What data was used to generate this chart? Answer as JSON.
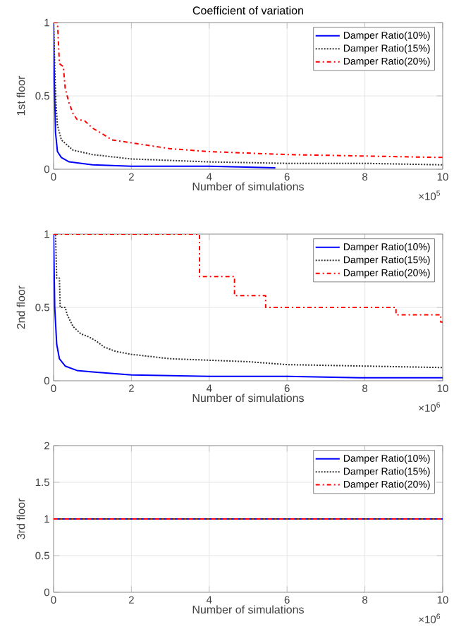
{
  "chart_data": [
    {
      "type": "line",
      "title": "Coefficient of variation",
      "xlabel": "Number of simulations",
      "ylabel": "1st floor",
      "annotations": [
        "×10$^{5}$"
      ],
      "xlim": [
        0,
        10
      ],
      "xticks": [
        0,
        2,
        4,
        6,
        8,
        10
      ],
      "ylim": [
        0,
        1
      ],
      "yticks": [
        0,
        0.5,
        1
      ],
      "grid": true,
      "legend": "top right",
      "series": [
        {
          "name": "Damper Ratio(10%)",
          "color": "#0000ff",
          "line_style": "solid",
          "x": [
            0,
            0.02,
            0.05,
            0.1,
            0.2,
            0.4,
            1,
            2,
            4,
            5.7
          ],
          "values": [
            1,
            0.6,
            0.25,
            0.12,
            0.08,
            0.05,
            0.03,
            0.02,
            0.02,
            0.01
          ]
        },
        {
          "name": "Damper Ratio(15%)",
          "color": "#333333",
          "line_style": "dotted",
          "x": [
            0,
            0.03,
            0.06,
            0.1,
            0.2,
            0.5,
            1,
            2,
            4,
            6,
            8,
            10
          ],
          "values": [
            1,
            0.7,
            0.45,
            0.3,
            0.2,
            0.13,
            0.1,
            0.07,
            0.05,
            0.04,
            0.04,
            0.03
          ]
        },
        {
          "name": "Damper Ratio(20%)",
          "color": "#ff0000",
          "line_style": "dashed",
          "x": [
            0,
            0.1,
            0.15,
            0.25,
            0.3,
            0.4,
            0.5,
            0.6,
            0.8,
            1,
            1.2,
            1.5,
            2,
            2.5,
            3,
            4,
            5,
            6,
            8,
            10
          ],
          "values": [
            1,
            1,
            0.72,
            0.7,
            0.55,
            0.45,
            0.38,
            0.34,
            0.33,
            0.28,
            0.25,
            0.2,
            0.18,
            0.16,
            0.14,
            0.12,
            0.11,
            0.1,
            0.09,
            0.08
          ]
        }
      ]
    },
    {
      "type": "line",
      "xlabel": "Number of simulations",
      "ylabel": "2nd floor",
      "annotations": [
        "×10$^{6}$"
      ],
      "xlim": [
        0,
        10
      ],
      "xticks": [
        0,
        2,
        4,
        6,
        8,
        10
      ],
      "ylim": [
        0,
        1
      ],
      "yticks": [
        0,
        0.5,
        1
      ],
      "grid": true,
      "legend": "top right",
      "series": [
        {
          "name": "Damper Ratio(10%)",
          "color": "#0000ff",
          "line_style": "solid",
          "x": [
            0,
            0.03,
            0.08,
            0.15,
            0.3,
            0.6,
            1,
            2,
            4,
            6,
            8,
            10
          ],
          "values": [
            1,
            0.5,
            0.25,
            0.15,
            0.1,
            0.07,
            0.06,
            0.04,
            0.03,
            0.03,
            0.02,
            0.02
          ]
        },
        {
          "name": "Damper Ratio(15%)",
          "color": "#333333",
          "line_style": "dotted",
          "x": [
            0,
            0.05,
            0.08,
            0.15,
            0.17,
            0.3,
            0.35,
            0.5,
            0.7,
            0.9,
            1.1,
            1.3,
            1.6,
            2,
            3,
            4,
            5,
            6,
            8,
            10
          ],
          "values": [
            1,
            1,
            0.7,
            0.7,
            0.5,
            0.5,
            0.45,
            0.37,
            0.32,
            0.3,
            0.27,
            0.23,
            0.2,
            0.18,
            0.15,
            0.14,
            0.13,
            0.11,
            0.1,
            0.09
          ]
        },
        {
          "name": "Damper Ratio(20%)",
          "type": "step",
          "color": "#ff0000",
          "line_style": "dashed",
          "x": [
            0,
            3.75,
            4.65,
            5.45,
            8.8,
            9.95,
            10
          ],
          "values": [
            1,
            0.71,
            0.58,
            0.5,
            0.45,
            0.4,
            0.4
          ]
        }
      ]
    },
    {
      "type": "line",
      "xlabel": "Number of simulations",
      "ylabel": "3rd floor",
      "annotations": [
        "×10$^{6}$"
      ],
      "xlim": [
        0,
        10
      ],
      "xticks": [
        0,
        2,
        4,
        6,
        8,
        10
      ],
      "ylim": [
        0,
        2
      ],
      "yticks": [
        0,
        0.5,
        1,
        1.5,
        2
      ],
      "grid": true,
      "legend": "top right",
      "series": [
        {
          "name": "Damper Ratio(10%)",
          "color": "#0000ff",
          "line_style": "solid",
          "x": [
            0,
            10
          ],
          "values": [
            1,
            1
          ]
        },
        {
          "name": "Damper Ratio(15%)",
          "color": "#333333",
          "line_style": "dotted",
          "x": [
            0,
            10
          ],
          "values": [
            1,
            1
          ]
        },
        {
          "name": "Damper Ratio(20%)",
          "color": "#ff0000",
          "line_style": "dashed",
          "x": [
            0,
            10
          ],
          "values": [
            1,
            1
          ]
        }
      ]
    }
  ]
}
